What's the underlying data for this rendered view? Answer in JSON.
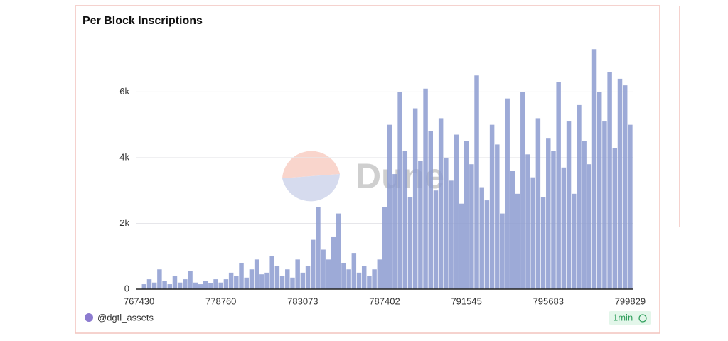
{
  "chart_data": {
    "type": "bar",
    "title": "Per Block Inscriptions",
    "watermark": "Dune",
    "author": "@dgtl_assets",
    "refresh": "1min",
    "categories": [
      "767430",
      null,
      null,
      null,
      null,
      null,
      null,
      null,
      null,
      null,
      null,
      null,
      null,
      null,
      null,
      null,
      "778760",
      null,
      null,
      null,
      null,
      null,
      null,
      null,
      null,
      null,
      null,
      null,
      null,
      null,
      null,
      null,
      "783073",
      null,
      null,
      null,
      null,
      null,
      null,
      null,
      null,
      null,
      null,
      null,
      null,
      null,
      null,
      null,
      "787402",
      null,
      null,
      null,
      null,
      null,
      null,
      null,
      null,
      null,
      null,
      null,
      null,
      null,
      null,
      null,
      "791545",
      null,
      null,
      null,
      null,
      null,
      null,
      null,
      null,
      null,
      null,
      null,
      null,
      null,
      null,
      null,
      "795683",
      null,
      null,
      null,
      null,
      null,
      null,
      null,
      null,
      null,
      null,
      null,
      null,
      null,
      null,
      null,
      "799829"
    ],
    "values": [
      0,
      150,
      300,
      200,
      600,
      250,
      150,
      400,
      200,
      300,
      550,
      200,
      150,
      250,
      180,
      300,
      200,
      300,
      500,
      400,
      800,
      350,
      600,
      900,
      450,
      500,
      1000,
      700,
      400,
      600,
      350,
      900,
      500,
      700,
      1500,
      2500,
      1200,
      900,
      1600,
      2300,
      800,
      600,
      1100,
      500,
      700,
      400,
      600,
      900,
      2500,
      5000,
      3500,
      6000,
      4200,
      2800,
      5500,
      3900,
      6100,
      4800,
      3000,
      5200,
      4000,
      3300,
      4700,
      2600,
      4500,
      3800,
      6500,
      3100,
      2700,
      5000,
      4400,
      2300,
      5800,
      3600,
      2900,
      6000,
      4100,
      3400,
      5200,
      2800,
      4600,
      4200,
      6300,
      3700,
      5100,
      2900,
      5600,
      4500,
      3800,
      7300,
      6000,
      5100,
      6600,
      4300,
      6400,
      6200,
      5000
    ],
    "color": "#8c9bd0",
    "ylim": [
      0,
      7500
    ],
    "yticks": [
      0,
      {
        "value": 2000,
        "label": "2k"
      },
      {
        "value": 4000,
        "label": "4k"
      },
      {
        "value": 6000,
        "label": "6k"
      }
    ],
    "grid": true
  }
}
